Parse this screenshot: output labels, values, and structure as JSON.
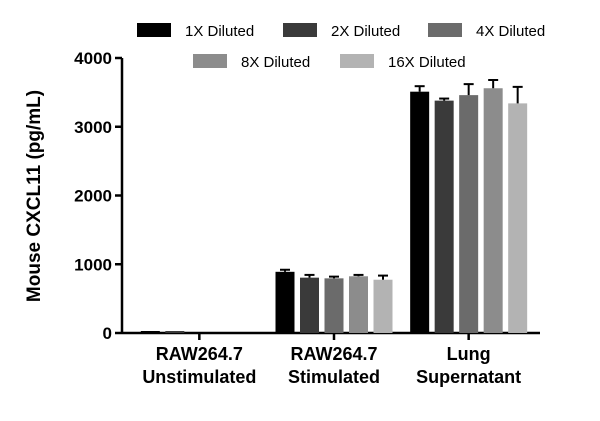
{
  "chart_data": {
    "type": "bar",
    "categories": [
      [
        "RAW264.7",
        "Unstimulated"
      ],
      [
        "RAW264.7",
        "Stimulated"
      ],
      [
        "Lung",
        "Supernatant"
      ]
    ],
    "series": [
      {
        "name": "1X Diluted",
        "color": "#000000",
        "values": [
          10,
          890,
          3510
        ],
        "errors": [
          0,
          30,
          80
        ]
      },
      {
        "name": "2X Diluted",
        "color": "#3a3a3a",
        "values": [
          8,
          805,
          3380
        ],
        "errors": [
          0,
          40,
          30
        ]
      },
      {
        "name": "4X Diluted",
        "color": "#6b6b6b",
        "values": [
          0,
          795,
          3460
        ],
        "errors": [
          0,
          25,
          160
        ]
      },
      {
        "name": "8X Diluted",
        "color": "#8c8c8c",
        "values": [
          0,
          825,
          3560
        ],
        "errors": [
          0,
          20,
          120
        ]
      },
      {
        "name": "16X Diluted",
        "color": "#b3b3b3",
        "values": [
          0,
          775,
          3340
        ],
        "errors": [
          0,
          60,
          240
        ]
      }
    ],
    "ylabel": "Mouse CXCL11 (pg/mL)",
    "xlabel": "",
    "ylim": [
      0,
      4000
    ],
    "yticks": [
      0,
      1000,
      2000,
      3000,
      4000
    ],
    "legend": "top",
    "grid": false
  }
}
